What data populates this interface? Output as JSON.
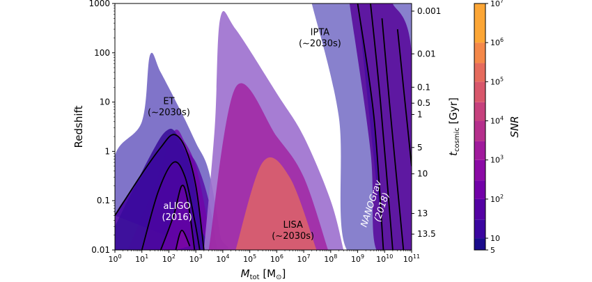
{
  "chart_data": {
    "type": "contour",
    "xlabel": "M",
    "xlabel_sub": "tot",
    "xlabel_unit": "[M",
    "xlabel_unit_sub": "⊙",
    "xlabel_unit_close": "]",
    "ylabel": "Redshift",
    "y2label": "t",
    "y2label_sub": "cosmic",
    "y2label_unit": " [Gyr]",
    "colorbar_label": "SNR",
    "x_scale": "log",
    "y_scale": "log",
    "xlim": [
      1,
      100000000000.0
    ],
    "ylim": [
      0.01,
      1000
    ],
    "x_ticks": [
      {
        "base": "10",
        "exp": "0"
      },
      {
        "base": "10",
        "exp": "1"
      },
      {
        "base": "10",
        "exp": "2"
      },
      {
        "base": "10",
        "exp": "3"
      },
      {
        "base": "10",
        "exp": "4"
      },
      {
        "base": "10",
        "exp": "5"
      },
      {
        "base": "10",
        "exp": "6"
      },
      {
        "base": "10",
        "exp": "7"
      },
      {
        "base": "10",
        "exp": "8"
      },
      {
        "base": "10",
        "exp": "9"
      },
      {
        "base": "10",
        "exp": "10"
      },
      {
        "base": "10",
        "exp": "11"
      }
    ],
    "y_ticks": [
      {
        "value": 0.01,
        "label": "0.01"
      },
      {
        "value": 0.1,
        "label": "0.1"
      },
      {
        "value": 1,
        "label": "1"
      },
      {
        "value": 10,
        "label": "10"
      },
      {
        "value": 100,
        "label": "100"
      },
      {
        "value": 1000,
        "label": "1000"
      }
    ],
    "y2_ticks": [
      {
        "z": 700,
        "label": "0.001"
      },
      {
        "z": 95,
        "label": "0.01"
      },
      {
        "z": 20,
        "label": "0.1"
      },
      {
        "z": 9.5,
        "label": "0.5"
      },
      {
        "z": 5.6,
        "label": "1"
      },
      {
        "z": 1.2,
        "label": "5"
      },
      {
        "z": 0.35,
        "label": "10"
      },
      {
        "z": 0.055,
        "label": "13"
      },
      {
        "z": 0.021,
        "label": "13.5"
      }
    ],
    "colorbar": {
      "scale": "log",
      "range": [
        5,
        10000000.0
      ],
      "ticks": [
        {
          "value": 5,
          "label": "5",
          "exp": ""
        },
        {
          "value": 10,
          "label": "10",
          "exp": ""
        },
        {
          "value": 100,
          "label": "10",
          "exp": "2"
        },
        {
          "value": 1000,
          "label": "10",
          "exp": "3"
        },
        {
          "value": 10000,
          "label": "10",
          "exp": "4"
        },
        {
          "value": 100000,
          "label": "10",
          "exp": "5"
        },
        {
          "value": 1000000,
          "label": "10",
          "exp": "6"
        },
        {
          "value": 10000000,
          "label": "10",
          "exp": "7"
        }
      ],
      "levels": [
        5,
        10,
        30,
        100,
        300,
        1000,
        3000,
        10000,
        30000,
        100000,
        300000,
        1000000,
        10000000
      ],
      "colors": [
        "#1a0c8c",
        "#3b06a0",
        "#5402a3",
        "#7201a8",
        "#8b0aa5",
        "#a01a9c",
        "#b52f8c",
        "#c6417d",
        "#d8576b",
        "#e56b5d",
        "#f48849",
        "#fca636",
        "#f0f921"
      ]
    },
    "annotations": [
      {
        "id": "et",
        "lines": [
          "ET",
          "(~2030s)"
        ],
        "x": 100,
        "z": 8,
        "color": "#000000"
      },
      {
        "id": "ipta",
        "lines": [
          "IPTA",
          "(~2030s)"
        ],
        "x": 40000000.0,
        "z": 200,
        "color": "#000000"
      },
      {
        "id": "aligo",
        "lines": [
          "aLIGO",
          "(2016)"
        ],
        "x": 200,
        "z": 0.06,
        "color": "#ffffff"
      },
      {
        "id": "lisa",
        "lines": [
          "LISA",
          "(~2030s)"
        ],
        "x": 4000000.0,
        "z": 0.025,
        "color": "#000000"
      },
      {
        "id": "nanograv",
        "lines": [
          "NANOGrav",
          "(2018)"
        ],
        "x": 5000000000.0,
        "z": 0.08,
        "color": "#ffffff",
        "italic": true,
        "rotate": -72
      }
    ],
    "detectors": [
      {
        "name": "ET",
        "boundary": [
          [
            1,
            0.025
          ],
          [
            1,
            0.8
          ],
          [
            10,
            4
          ],
          [
            20,
            90
          ],
          [
            50,
            40
          ],
          [
            300,
            6
          ],
          [
            1000,
            1.5
          ],
          [
            3000,
            0.4
          ],
          [
            8000,
            0.02
          ],
          [
            8000,
            0.01
          ],
          [
            1,
            0.01
          ]
        ],
        "layers": [
          {
            "snr": 30,
            "boundary": [
              [
                1,
                0.01
              ],
              [
                1,
                0.05
              ],
              [
                10,
                0.3
              ],
              [
                100,
                2
              ],
              [
                300,
                1.2
              ],
              [
                1000,
                0.6
              ],
              [
                3000,
                0.1
              ],
              [
                6000,
                0.01
              ]
            ]
          },
          {
            "snr": 100,
            "boundary": [
              [
                3,
                0.01
              ],
              [
                30,
                0.2
              ],
              [
                150,
                2.5
              ],
              [
                400,
                1.5
              ],
              [
                1000,
                0.5
              ],
              [
                2500,
                0.05
              ],
              [
                4000,
                0.01
              ]
            ]
          }
        ]
      },
      {
        "name": "aLIGO",
        "boundary": [
          [
            1,
            0.03
          ],
          [
            20,
            0.8
          ],
          [
            80,
            2.6
          ],
          [
            200,
            2.2
          ],
          [
            700,
            0.4
          ],
          [
            1500,
            0.03
          ],
          [
            2000,
            0.01
          ],
          [
            1,
            0.01
          ]
        ],
        "contours": [
          {
            "snr": 10,
            "points": [
              [
                1,
                0.05
              ],
              [
                10,
                0.35
              ],
              [
                50,
                1.2
              ],
              [
                150,
                2.2
              ],
              [
                400,
                1.2
              ],
              [
                1000,
                0.2
              ],
              [
                2000,
                0.01
              ]
            ]
          },
          {
            "snr": 30,
            "points": [
              [
                10,
                0.01
              ],
              [
                40,
                0.15
              ],
              [
                150,
                0.6
              ],
              [
                400,
                0.3
              ],
              [
                900,
                0.04
              ],
              [
                1400,
                0.01
              ]
            ]
          },
          {
            "snr": 100,
            "points": [
              [
                50,
                0.01
              ],
              [
                150,
                0.05
              ],
              [
                300,
                0.2
              ],
              [
                500,
                0.1
              ],
              [
                900,
                0.01
              ]
            ]
          },
          {
            "snr": 300,
            "points": [
              [
                180,
                0.01
              ],
              [
                300,
                0.025
              ],
              [
                600,
                0.012
              ]
            ]
          }
        ]
      },
      {
        "name": "LISA",
        "boundary": [
          [
            2000,
            0.01
          ],
          [
            5000,
            3
          ],
          [
            8000,
            500
          ],
          [
            30000,
            300
          ],
          [
            1000000.0,
            15
          ],
          [
            10000000.0,
            2
          ],
          [
            100000000.0,
            0.1
          ],
          [
            300000000.0,
            0.01
          ]
        ],
        "layers": [
          {
            "snr": 1000,
            "boundary": [
              [
                3000,
                0.01
              ],
              [
                30000,
                20
              ],
              [
                1000000.0,
                2
              ],
              [
                10000000.0,
                0.3
              ],
              [
                80000000.0,
                0.01
              ]
            ]
          },
          {
            "snr": 100000,
            "boundary": [
              [
                30000,
                0.01
              ],
              [
                300000.0,
                0.6
              ],
              [
                3000000.0,
                0.3
              ],
              [
                30000000.0,
                0.01
              ]
            ]
          }
        ]
      },
      {
        "name": "IPTA",
        "boundary": [
          [
            20000000.0,
            1000
          ],
          [
            200000000.0,
            5
          ],
          [
            400000000.0,
            0.01
          ],
          [
            100000000000.0,
            0.01
          ],
          [
            100000000000.0,
            1000
          ]
        ]
      },
      {
        "name": "NANOGrav",
        "boundary": [
          [
            500000000.0,
            1000
          ],
          [
            3000000000.0,
            1
          ],
          [
            5000000000.0,
            0.01
          ],
          [
            100000000000.0,
            0.01
          ],
          [
            100000000000.0,
            100
          ],
          [
            20000000000.0,
            1000
          ]
        ],
        "contours": [
          {
            "snr": 10,
            "points": [
              [
                1000000000.0,
                1000
              ],
              [
                4000000000.0,
                5
              ],
              [
                9000000000.0,
                0.01
              ]
            ]
          },
          {
            "snr": 30,
            "points": [
              [
                3000000000.0,
                1000
              ],
              [
                7000000000.0,
                10
              ],
              [
                20000000000.0,
                0.01
              ]
            ]
          },
          {
            "snr": 100,
            "points": [
              [
                8000000000.0,
                500
              ],
              [
                15000000000.0,
                10
              ],
              [
                50000000000.0,
                0.01
              ]
            ]
          },
          {
            "snr": 300,
            "points": [
              [
                30000000000.0,
                300
              ],
              [
                50000000000.0,
                20
              ],
              [
                100000000000.0,
                0.5
              ]
            ]
          }
        ]
      }
    ]
  }
}
